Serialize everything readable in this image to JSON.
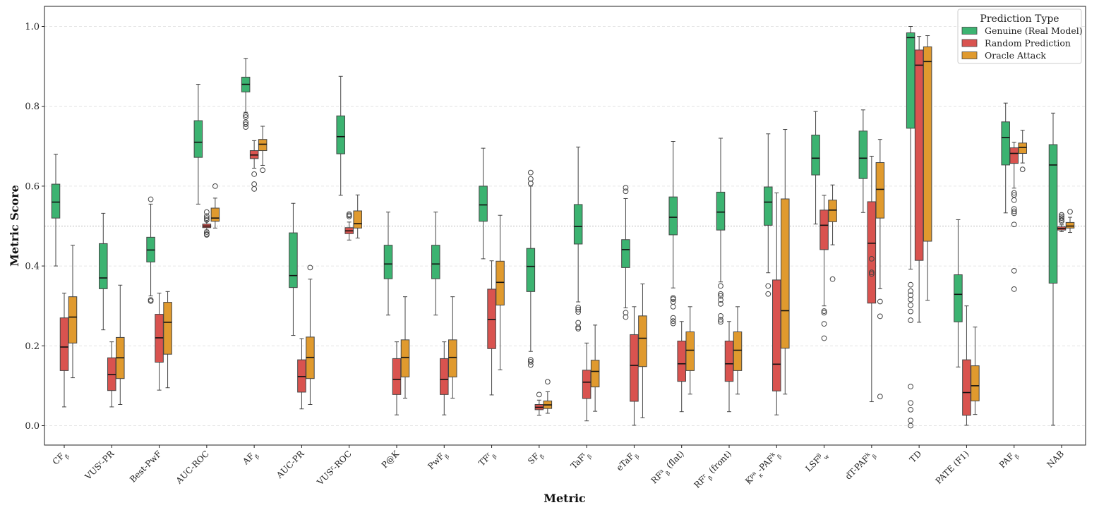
{
  "chart_data": {
    "type": "box",
    "xlabel": "Metric",
    "ylabel": "Metric Score",
    "ylim": [
      -0.05,
      1.05
    ],
    "yticks": [
      "0.0",
      "0.2",
      "0.4",
      "0.6",
      "0.8",
      "1.0"
    ],
    "grid": true,
    "reference_line": 0.5,
    "legend": {
      "title": "Prediction Type",
      "placement": "top-right"
    },
    "series": [
      {
        "name": "Genuine (Real Model)",
        "color": "#3cb371"
      },
      {
        "name": "Random Prediction",
        "color": "#d9534f"
      },
      {
        "name": "Oracle Attack",
        "color": "#e09a2e"
      }
    ],
    "categories": [
      {
        "label": "CF_β",
        "base": "CF",
        "sub": "β",
        "sup": "",
        "boxes": [
          {
            "q1": 0.52,
            "med": 0.56,
            "q3": 0.605,
            "wlo": 0.4,
            "whi": 0.68,
            "outliers": []
          },
          {
            "q1": 0.138,
            "med": 0.197,
            "q3": 0.27,
            "wlo": 0.047,
            "whi": 0.332,
            "outliers": []
          },
          {
            "q1": 0.207,
            "med": 0.272,
            "q3": 0.323,
            "wlo": 0.12,
            "whi": 0.452,
            "outliers": []
          }
        ]
      },
      {
        "label": "VUS^r-PR",
        "base": "VUS",
        "sub": "",
        "sup": "r",
        "tail": "-PR",
        "boxes": [
          {
            "q1": 0.343,
            "med": 0.37,
            "q3": 0.456,
            "wlo": 0.24,
            "whi": 0.532,
            "outliers": []
          },
          {
            "q1": 0.088,
            "med": 0.128,
            "q3": 0.17,
            "wlo": 0.047,
            "whi": 0.21,
            "outliers": []
          },
          {
            "q1": 0.118,
            "med": 0.17,
            "q3": 0.221,
            "wlo": 0.053,
            "whi": 0.352,
            "outliers": []
          }
        ]
      },
      {
        "label": "Best-PwF",
        "base": "Best-PwF",
        "sub": "",
        "sup": "",
        "boxes": [
          {
            "q1": 0.41,
            "med": 0.44,
            "q3": 0.472,
            "wlo": 0.325,
            "whi": 0.555,
            "outliers": [
              0.567,
              0.312,
              0.315
            ]
          },
          {
            "q1": 0.159,
            "med": 0.22,
            "q3": 0.279,
            "wlo": 0.089,
            "whi": 0.332,
            "outliers": []
          },
          {
            "q1": 0.179,
            "med": 0.259,
            "q3": 0.309,
            "wlo": 0.095,
            "whi": 0.336,
            "outliers": []
          }
        ]
      },
      {
        "label": "AUC-ROC",
        "base": "AUC-ROC",
        "sub": "",
        "sup": "",
        "boxes": [
          {
            "q1": 0.672,
            "med": 0.71,
            "q3": 0.764,
            "wlo": 0.555,
            "whi": 0.855,
            "outliers": []
          },
          {
            "q1": 0.496,
            "med": 0.5,
            "q3": 0.505,
            "wlo": 0.49,
            "whi": 0.512,
            "outliers": [
              0.535,
              0.525,
              0.52,
              0.515,
              0.485,
              0.48,
              0.478
            ]
          },
          {
            "q1": 0.512,
            "med": 0.52,
            "q3": 0.545,
            "wlo": 0.495,
            "whi": 0.57,
            "outliers": [
              0.6
            ]
          }
        ]
      },
      {
        "label": "AF_β",
        "base": "AF",
        "sub": "β",
        "sup": "",
        "boxes": [
          {
            "q1": 0.836,
            "med": 0.855,
            "q3": 0.873,
            "wlo": 0.785,
            "whi": 0.92,
            "outliers": [
              0.778,
              0.773,
              0.76,
              0.755,
              0.748
            ]
          },
          {
            "q1": 0.669,
            "med": 0.678,
            "q3": 0.689,
            "wlo": 0.645,
            "whi": 0.714,
            "outliers": [
              0.63,
              0.605,
              0.593
            ]
          },
          {
            "q1": 0.689,
            "med": 0.705,
            "q3": 0.717,
            "wlo": 0.652,
            "whi": 0.75,
            "outliers": [
              0.64
            ]
          }
        ]
      },
      {
        "label": "AUC-PR",
        "base": "AUC-PR",
        "sub": "",
        "sup": "",
        "boxes": [
          {
            "q1": 0.346,
            "med": 0.376,
            "q3": 0.483,
            "wlo": 0.226,
            "whi": 0.557,
            "outliers": []
          },
          {
            "q1": 0.084,
            "med": 0.123,
            "q3": 0.165,
            "wlo": 0.042,
            "whi": 0.218,
            "outliers": []
          },
          {
            "q1": 0.118,
            "med": 0.171,
            "q3": 0.222,
            "wlo": 0.053,
            "whi": 0.367,
            "outliers": [
              0.396
            ]
          }
        ]
      },
      {
        "label": "VUS^r-ROC",
        "base": "VUS",
        "sub": "",
        "sup": "r",
        "tail": "-ROC",
        "boxes": [
          {
            "q1": 0.681,
            "med": 0.724,
            "q3": 0.776,
            "wlo": 0.577,
            "whi": 0.875,
            "outliers": []
          },
          {
            "q1": 0.481,
            "med": 0.488,
            "q3": 0.496,
            "wlo": 0.465,
            "whi": 0.51,
            "outliers": [
              0.53,
              0.527,
              0.524
            ]
          },
          {
            "q1": 0.495,
            "med": 0.506,
            "q3": 0.538,
            "wlo": 0.47,
            "whi": 0.578,
            "outliers": []
          }
        ]
      },
      {
        "label": "P@K",
        "base": "P@K",
        "sub": "",
        "sup": "",
        "boxes": [
          {
            "q1": 0.368,
            "med": 0.405,
            "q3": 0.452,
            "wlo": 0.277,
            "whi": 0.535,
            "outliers": []
          },
          {
            "q1": 0.078,
            "med": 0.116,
            "q3": 0.168,
            "wlo": 0.027,
            "whi": 0.21,
            "outliers": []
          },
          {
            "q1": 0.122,
            "med": 0.171,
            "q3": 0.215,
            "wlo": 0.069,
            "whi": 0.323,
            "outliers": []
          }
        ]
      },
      {
        "label": "PwF_β",
        "base": "PwF",
        "sub": "β",
        "sup": "",
        "boxes": [
          {
            "q1": 0.368,
            "med": 0.405,
            "q3": 0.452,
            "wlo": 0.277,
            "whi": 0.535,
            "outliers": []
          },
          {
            "q1": 0.078,
            "med": 0.116,
            "q3": 0.168,
            "wlo": 0.027,
            "whi": 0.21,
            "outliers": []
          },
          {
            "q1": 0.122,
            "med": 0.171,
            "q3": 0.215,
            "wlo": 0.069,
            "whi": 0.323,
            "outliers": []
          }
        ]
      },
      {
        "label": "TF^r_β",
        "base": "TF",
        "sub": "β",
        "sup": "r",
        "boxes": [
          {
            "q1": 0.512,
            "med": 0.553,
            "q3": 0.6,
            "wlo": 0.418,
            "whi": 0.695,
            "outliers": []
          },
          {
            "q1": 0.193,
            "med": 0.266,
            "q3": 0.342,
            "wlo": 0.077,
            "whi": 0.413,
            "outliers": []
          },
          {
            "q1": 0.302,
            "med": 0.359,
            "q3": 0.412,
            "wlo": 0.14,
            "whi": 0.527,
            "outliers": []
          }
        ]
      },
      {
        "label": "SF_β",
        "base": "SF",
        "sub": "β",
        "sup": "",
        "boxes": [
          {
            "q1": 0.336,
            "med": 0.399,
            "q3": 0.444,
            "wlo": 0.186,
            "whi": 0.6,
            "outliers": [
              0.634,
              0.618,
              0.607,
              0.165,
              0.16,
              0.152
            ]
          },
          {
            "q1": 0.04,
            "med": 0.046,
            "q3": 0.053,
            "wlo": 0.026,
            "whi": 0.064,
            "outliers": [
              0.078
            ]
          },
          {
            "q1": 0.043,
            "med": 0.052,
            "q3": 0.062,
            "wlo": 0.031,
            "whi": 0.085,
            "outliers": [
              0.11
            ]
          }
        ]
      },
      {
        "label": "TaF^t_β",
        "base": "TaF",
        "sub": "β",
        "sup": "t",
        "boxes": [
          {
            "q1": 0.455,
            "med": 0.499,
            "q3": 0.554,
            "wlo": 0.31,
            "whi": 0.698,
            "outliers": [
              0.296,
              0.291,
              0.285,
              0.258,
              0.246,
              0.243
            ]
          },
          {
            "q1": 0.068,
            "med": 0.109,
            "q3": 0.139,
            "wlo": 0.012,
            "whi": 0.207,
            "outliers": []
          },
          {
            "q1": 0.097,
            "med": 0.136,
            "q3": 0.164,
            "wlo": 0.036,
            "whi": 0.252,
            "outliers": []
          }
        ]
      },
      {
        "label": "eTaF_β",
        "base": "eTaF",
        "sub": "β",
        "sup": "",
        "boxes": [
          {
            "q1": 0.396,
            "med": 0.441,
            "q3": 0.466,
            "wlo": 0.295,
            "whi": 0.569,
            "outliers": [
              0.596,
              0.587,
              0.283,
              0.272
            ]
          },
          {
            "q1": 0.061,
            "med": 0.151,
            "q3": 0.228,
            "wlo": 0.001,
            "whi": 0.298,
            "outliers": []
          },
          {
            "q1": 0.148,
            "med": 0.219,
            "q3": 0.275,
            "wlo": 0.02,
            "whi": 0.355,
            "outliers": []
          }
        ]
      },
      {
        "label": "RF^a_β (flat)",
        "base": "RF",
        "sub": "β",
        "sup": "a",
        "tail": " (flat)",
        "boxes": [
          {
            "q1": 0.478,
            "med": 0.522,
            "q3": 0.573,
            "wlo": 0.345,
            "whi": 0.712,
            "outliers": [
              0.32,
              0.317,
              0.31,
              0.298,
              0.27,
              0.262,
              0.256
            ]
          },
          {
            "q1": 0.111,
            "med": 0.155,
            "q3": 0.212,
            "wlo": 0.035,
            "whi": 0.261,
            "outliers": []
          },
          {
            "q1": 0.138,
            "med": 0.189,
            "q3": 0.235,
            "wlo": 0.079,
            "whi": 0.298,
            "outliers": []
          }
        ]
      },
      {
        "label": "RF^r_β (front)",
        "base": "RF",
        "sub": "β",
        "sup": "r",
        "tail": " (front)",
        "boxes": [
          {
            "q1": 0.49,
            "med": 0.535,
            "q3": 0.585,
            "wlo": 0.36,
            "whi": 0.72,
            "outliers": [
              0.35,
              0.33,
              0.325,
              0.315,
              0.305,
              0.275,
              0.265,
              0.26
            ]
          },
          {
            "q1": 0.111,
            "med": 0.155,
            "q3": 0.212,
            "wlo": 0.035,
            "whi": 0.261,
            "outliers": []
          },
          {
            "q1": 0.138,
            "med": 0.189,
            "q3": 0.235,
            "wlo": 0.079,
            "whi": 0.298,
            "outliers": []
          }
        ]
      },
      {
        "label": "K^pa_κ-PAF^k_β",
        "base": "K",
        "sub": "κ",
        "sup": "pa",
        "tail": "-PAF",
        "tailsub": "β",
        "tailsup": "k",
        "boxes": [
          {
            "q1": 0.502,
            "med": 0.56,
            "q3": 0.598,
            "wlo": 0.383,
            "whi": 0.731,
            "outliers": [
              0.35,
              0.33
            ]
          },
          {
            "q1": 0.087,
            "med": 0.154,
            "q3": 0.365,
            "wlo": 0.027,
            "whi": 0.583,
            "outliers": []
          },
          {
            "q1": 0.194,
            "med": 0.288,
            "q3": 0.568,
            "wlo": 0.079,
            "whi": 0.742,
            "outliers": []
          }
        ]
      },
      {
        "label": "LSF^β_w",
        "base": "LSF",
        "sub": "w",
        "sup": "β",
        "boxes": [
          {
            "q1": 0.628,
            "med": 0.67,
            "q3": 0.728,
            "wlo": 0.505,
            "whi": 0.787,
            "outliers": []
          },
          {
            "q1": 0.441,
            "med": 0.502,
            "q3": 0.54,
            "wlo": 0.3,
            "whi": 0.577,
            "outliers": [
              0.287,
              0.283,
              0.255,
              0.219
            ]
          },
          {
            "q1": 0.511,
            "med": 0.54,
            "q3": 0.565,
            "wlo": 0.453,
            "whi": 0.603,
            "outliers": [
              0.367
            ]
          }
        ]
      },
      {
        "label": "dT-PAF^k_β",
        "base": "dT-PAF",
        "sub": "β",
        "sup": "k",
        "boxes": [
          {
            "q1": 0.619,
            "med": 0.67,
            "q3": 0.738,
            "wlo": 0.534,
            "whi": 0.791,
            "outliers": []
          },
          {
            "q1": 0.307,
            "med": 0.457,
            "q3": 0.561,
            "wlo": 0.06,
            "whi": 0.675,
            "outliers": [
              0.418,
              0.384,
              0.38
            ]
          },
          {
            "q1": 0.52,
            "med": 0.592,
            "q3": 0.659,
            "wlo": 0.343,
            "whi": 0.717,
            "outliers": [
              0.311,
              0.274,
              0.073
            ]
          }
        ]
      },
      {
        "label": "TD",
        "base": "TD",
        "sub": "",
        "sup": "",
        "boxes": [
          {
            "q1": 0.745,
            "med": 0.972,
            "q3": 0.984,
            "wlo": 0.392,
            "whi": 1.0,
            "outliers": [
              0.353,
              0.337,
              0.327,
              0.316,
              0.302,
              0.286,
              0.264,
              0.098,
              0.057,
              0.04,
              0.013,
              0.0
            ]
          },
          {
            "q1": 0.414,
            "med": 0.903,
            "q3": 0.941,
            "wlo": 0.259,
            "whi": 0.975,
            "outliers": []
          },
          {
            "q1": 0.462,
            "med": 0.912,
            "q3": 0.949,
            "wlo": 0.314,
            "whi": 0.977,
            "outliers": []
          }
        ]
      },
      {
        "label": "PATE (F1)",
        "base": "PATE (F1)",
        "sub": "",
        "sup": "",
        "boxes": [
          {
            "q1": 0.26,
            "med": 0.329,
            "q3": 0.378,
            "wlo": 0.147,
            "whi": 0.516,
            "outliers": []
          },
          {
            "q1": 0.026,
            "med": 0.083,
            "q3": 0.165,
            "wlo": 0.001,
            "whi": 0.3,
            "outliers": []
          },
          {
            "q1": 0.062,
            "med": 0.1,
            "q3": 0.15,
            "wlo": 0.028,
            "whi": 0.247,
            "outliers": []
          }
        ]
      },
      {
        "label": "PAF_β",
        "base": "PAF",
        "sub": "β",
        "sup": "",
        "boxes": [
          {
            "q1": 0.653,
            "med": 0.722,
            "q3": 0.761,
            "wlo": 0.533,
            "whi": 0.808,
            "outliers": []
          },
          {
            "q1": 0.657,
            "med": 0.682,
            "q3": 0.696,
            "wlo": 0.595,
            "whi": 0.71,
            "outliers": [
              0.583,
              0.578,
              0.565,
              0.543,
              0.537,
              0.532,
              0.504,
              0.388,
              0.342
            ]
          },
          {
            "q1": 0.682,
            "med": 0.697,
            "q3": 0.708,
            "wlo": 0.658,
            "whi": 0.74,
            "outliers": [
              0.642
            ]
          }
        ]
      },
      {
        "label": "NAB",
        "base": "NAB",
        "sub": "",
        "sup": "",
        "boxes": [
          {
            "q1": 0.357,
            "med": 0.653,
            "q3": 0.704,
            "wlo": 0.001,
            "whi": 0.783,
            "outliers": []
          },
          {
            "q1": 0.49,
            "med": 0.494,
            "q3": 0.498,
            "wlo": 0.486,
            "whi": 0.503,
            "outliers": [
              0.528,
              0.524,
              0.52,
              0.515,
              0.512
            ]
          },
          {
            "q1": 0.495,
            "med": 0.5,
            "q3": 0.509,
            "wlo": 0.484,
            "whi": 0.522,
            "outliers": [
              0.536
            ]
          }
        ]
      }
    ]
  }
}
